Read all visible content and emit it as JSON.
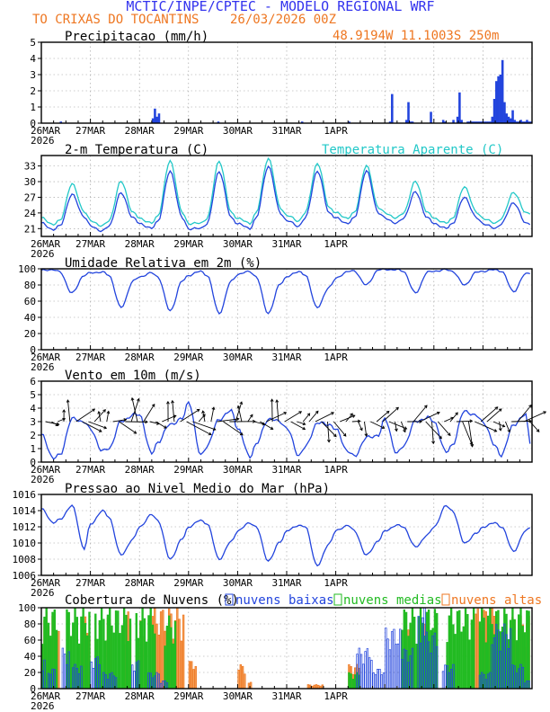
{
  "header": {
    "title": "MCTIC/INPE/CPTEC - MODELO REGIONAL WRF",
    "location": "TO CRIXAS DO TOCANTINS",
    "run": "26/03/2026 00Z",
    "coords": "48.9194W 11.1003S 250m"
  },
  "x_axis": {
    "ticks": [
      "26MAR",
      "27MAR",
      "28MAR",
      "29MAR",
      "30MAR",
      "31MAR",
      "1APR"
    ],
    "year": "2026"
  },
  "colors": {
    "title": "#3333ee",
    "orange": "#ee7722",
    "blue": "#2244dd",
    "cyan": "#22c8c8",
    "green": "#22bb22",
    "orange_fill": "#f5a25a",
    "axis": "#000000"
  },
  "chart_data": [
    {
      "id": "precip",
      "type": "bar",
      "title": "Precipitacao (mm/h)",
      "ylim": [
        0,
        5
      ],
      "yticks": [
        "0",
        "1",
        "2",
        "3",
        "4",
        "5"
      ],
      "hours": [
        9,
        54,
        55,
        56,
        57,
        86,
        127,
        150,
        170,
        171,
        178,
        179,
        180,
        181,
        190,
        196,
        197,
        201,
        203,
        204,
        205,
        208,
        209,
        210,
        211,
        212,
        213,
        214,
        215,
        216,
        217,
        218,
        219,
        220,
        221,
        222,
        223,
        224,
        225,
        226,
        227,
        228,
        229,
        230,
        231,
        232,
        233,
        234,
        235,
        236,
        237,
        238,
        239
      ],
      "values": [
        0.1,
        0.3,
        0.9,
        0.4,
        0.6,
        0.1,
        0.1,
        0.1,
        0.1,
        1.8,
        0.2,
        1.3,
        0.1,
        0.1,
        0.7,
        0.2,
        0.1,
        0.2,
        0.4,
        1.9,
        0.2,
        0.1,
        0.1,
        0.1,
        0.1,
        0.1,
        0.1,
        0.1,
        0.1,
        0.1,
        0.1,
        0.1,
        0.1,
        0.4,
        1.5,
        2.6,
        2.9,
        3.0,
        3.9,
        1.3,
        0.6,
        0.4,
        0.3,
        0.8,
        0.2,
        0.1,
        0.1,
        0.2,
        0.1,
        0.1,
        0.2,
        0.1,
        0.1
      ]
    },
    {
      "id": "temp",
      "type": "line",
      "title": "2-m Temperatura (C)",
      "legend": "Temperatura Aparente (C)",
      "ylim": [
        19.5,
        35
      ],
      "yticks": [
        "21",
        "24",
        "27",
        "30",
        "33"
      ],
      "series": [
        {
          "name": "2-m Temperatura (C)",
          "keys_h": [
            0,
            6,
            9,
            15,
            21,
            24,
            30,
            33,
            39,
            45,
            48,
            54,
            57,
            63,
            69,
            72,
            78,
            81,
            87,
            93,
            96,
            102,
            105,
            111,
            117,
            120,
            126,
            129,
            135,
            141,
            144,
            150,
            153,
            159,
            165,
            168,
            174,
            177,
            183,
            189,
            192,
            198,
            201,
            207,
            213,
            216,
            222,
            225,
            231,
            237,
            239
          ],
          "keys_v": [
            22.0,
            20.8,
            21.5,
            27.5,
            23.3,
            21.5,
            20.5,
            21.5,
            27.8,
            23.0,
            22.0,
            21.0,
            22.5,
            32.0,
            23.0,
            21.0,
            21.0,
            22.0,
            32.0,
            23.0,
            22.0,
            21.0,
            23.0,
            33.0,
            24.0,
            22.5,
            21.5,
            23.0,
            32.0,
            24.0,
            23.0,
            22.0,
            23.0,
            32.0,
            24.0,
            23.0,
            22.0,
            23.0,
            28.0,
            23.0,
            22.0,
            21.0,
            22.0,
            27.0,
            23.0,
            22.0,
            21.0,
            22.0,
            26.0,
            22.0,
            22.0
          ]
        },
        {
          "name": "Temperatura Aparente (C)",
          "keys_h": [
            0,
            6,
            9,
            15,
            21,
            24,
            30,
            33,
            39,
            45,
            48,
            54,
            57,
            63,
            69,
            72,
            78,
            81,
            87,
            93,
            96,
            102,
            105,
            111,
            117,
            120,
            126,
            129,
            135,
            141,
            144,
            150,
            153,
            159,
            165,
            168,
            174,
            177,
            183,
            189,
            192,
            198,
            201,
            207,
            213,
            216,
            222,
            225,
            231,
            237,
            239
          ],
          "keys_v": [
            23.0,
            21.8,
            22.5,
            29.5,
            24.3,
            22.5,
            21.5,
            22.5,
            30.0,
            24.0,
            23.0,
            22.0,
            23.5,
            34.0,
            24.0,
            22.0,
            22.0,
            23.0,
            34.0,
            24.0,
            23.0,
            22.0,
            24.0,
            34.5,
            25.0,
            23.5,
            22.5,
            24.0,
            33.5,
            25.0,
            24.0,
            23.0,
            24.0,
            33.0,
            25.0,
            24.0,
            23.0,
            24.0,
            30.0,
            24.0,
            23.0,
            22.0,
            23.0,
            29.0,
            24.0,
            23.0,
            22.0,
            23.0,
            28.0,
            24.0,
            24.0
          ]
        }
      ]
    },
    {
      "id": "rh",
      "type": "line",
      "title": "Umidade Relativa em 2m (%)",
      "ylim": [
        0,
        100
      ],
      "yticks": [
        "0",
        "20",
        "40",
        "60",
        "80",
        "100"
      ],
      "series": [
        {
          "name": "Umidade Relativa em 2m (%)",
          "keys_h": [
            0,
            6,
            9,
            15,
            21,
            24,
            30,
            33,
            39,
            45,
            48,
            54,
            57,
            63,
            69,
            72,
            78,
            81,
            87,
            93,
            96,
            102,
            105,
            111,
            117,
            120,
            126,
            129,
            135,
            141,
            144,
            150,
            153,
            159,
            165,
            168,
            174,
            177,
            183,
            189,
            192,
            198,
            201,
            207,
            213,
            216,
            222,
            225,
            231,
            237,
            239
          ],
          "keys_v": [
            98,
            99,
            96,
            70,
            92,
            95,
            96,
            92,
            52,
            85,
            90,
            95,
            90,
            48,
            85,
            92,
            97,
            92,
            45,
            85,
            93,
            97,
            90,
            45,
            82,
            90,
            97,
            92,
            52,
            78,
            88,
            97,
            97,
            80,
            99,
            99,
            99,
            97,
            70,
            96,
            97,
            99,
            97,
            80,
            96,
            97,
            99,
            97,
            72,
            94,
            95
          ]
        }
      ]
    },
    {
      "id": "wind",
      "type": "line",
      "title": "Vento em 10m (m/s)",
      "ylim": [
        0,
        6
      ],
      "yticks": [
        "0",
        "1",
        "2",
        "3",
        "4",
        "5",
        "6"
      ],
      "series": [
        {
          "name": "Vento em 10m (m/s)",
          "keys_h": [
            0,
            6,
            9,
            15,
            21,
            24,
            30,
            33,
            39,
            45,
            48,
            54,
            57,
            63,
            69,
            72,
            78,
            81,
            87,
            93,
            96,
            102,
            105,
            111,
            117,
            120,
            126,
            129,
            135,
            141,
            144,
            150,
            153,
            159,
            165,
            168,
            174,
            177,
            183,
            189,
            192,
            198,
            201,
            207,
            213,
            216,
            222,
            225,
            231,
            237,
            239
          ],
          "keys_v": [
            2.0,
            0.3,
            0.5,
            3.2,
            3.0,
            2.4,
            0.8,
            1.0,
            3.0,
            3.5,
            3.5,
            0.6,
            1.5,
            2.8,
            3.2,
            4.5,
            0.5,
            1.2,
            3.2,
            3.8,
            2.5,
            0.4,
            1.3,
            3.2,
            3.0,
            2.5,
            0.5,
            1.1,
            2.9,
            2.8,
            2.4,
            0.8,
            0.4,
            1.8,
            2.0,
            3.2,
            0.6,
            1.2,
            3.0,
            3.3,
            3.0,
            0.7,
            1.3,
            3.8,
            3.4,
            3.0,
            1.2,
            0.5,
            2.8,
            3.5,
            1.5
          ]
        }
      ]
    },
    {
      "id": "pres",
      "type": "line",
      "title": "Pressao ao Nivel Medio do Mar (hPa)",
      "ylim": [
        1006,
        1016
      ],
      "yticks": [
        "1006",
        "1008",
        "1010",
        "1012",
        "1014",
        "1016"
      ],
      "series": [
        {
          "name": "Pressao ao Nivel Medio do Mar (hPa)",
          "keys_h": [
            0,
            6,
            9,
            15,
            21,
            24,
            30,
            33,
            39,
            45,
            48,
            54,
            57,
            63,
            69,
            72,
            78,
            81,
            87,
            93,
            96,
            102,
            105,
            111,
            117,
            120,
            126,
            129,
            135,
            141,
            144,
            150,
            153,
            159,
            165,
            168,
            174,
            177,
            183,
            189,
            192,
            198,
            201,
            207,
            213,
            216,
            222,
            225,
            231,
            237,
            239
          ],
          "keys_v": [
            1014.2,
            1012.5,
            1012.9,
            1014.6,
            1009.3,
            1012.3,
            1014.0,
            1013.2,
            1008.5,
            1010.5,
            1012.0,
            1013.5,
            1012.8,
            1008.0,
            1010.5,
            1012.0,
            1012.8,
            1012.4,
            1008.0,
            1010.2,
            1011.5,
            1012.5,
            1012.0,
            1007.8,
            1010.2,
            1011.5,
            1012.2,
            1012.0,
            1007.2,
            1010.0,
            1011.5,
            1012.2,
            1011.5,
            1008.5,
            1010.3,
            1011.5,
            1012.2,
            1012.0,
            1009.5,
            1011.0,
            1012.0,
            1014.6,
            1014.0,
            1010.0,
            1011.2,
            1012.0,
            1012.5,
            1012.0,
            1009.0,
            1011.5,
            1012.0
          ]
        }
      ]
    },
    {
      "id": "clouds",
      "type": "bar",
      "title": "Cobertura de Nuvens (%)",
      "legend": [
        "nuvens baixas",
        "nuvens medias",
        "nuvens altas"
      ],
      "ylim": [
        0,
        100
      ],
      "yticks": [
        "0",
        "20",
        "40",
        "60",
        "80",
        "100"
      ],
      "series": [
        {
          "name": "nuvens altas",
          "ranges": [
            [
              0,
              9,
              95
            ],
            [
              19,
              24,
              90
            ],
            [
              32,
              35,
              90
            ],
            [
              40,
              44,
              95
            ],
            [
              48,
              50,
              85
            ],
            [
              54,
              70,
              100
            ],
            [
              72,
              76,
              35
            ],
            [
              96,
              100,
              30
            ],
            [
              101,
              103,
              10
            ],
            [
              130,
              138,
              5
            ],
            [
              150,
              156,
              30
            ],
            [
              178,
              182,
              80
            ],
            [
              184,
              190,
              80
            ],
            [
              212,
              222,
              100
            ],
            [
              230,
              239,
              90
            ]
          ]
        },
        {
          "name": "nuvens medias",
          "ranges": [
            [
              0,
              8,
              100
            ],
            [
              12,
              24,
              100
            ],
            [
              26,
              44,
              100
            ],
            [
              46,
              56,
              100
            ],
            [
              60,
              66,
              90
            ],
            [
              150,
              156,
              20
            ],
            [
              176,
              194,
              100
            ],
            [
              198,
              212,
              100
            ],
            [
              214,
              239,
              100
            ]
          ]
        },
        {
          "name": "nuvens baixas",
          "ranges": [
            [
              0,
              2,
              40
            ],
            [
              3,
              7,
              25
            ],
            [
              10,
              14,
              50
            ],
            [
              15,
              20,
              30
            ],
            [
              24,
              29,
              40
            ],
            [
              30,
              37,
              20
            ],
            [
              44,
              48,
              35
            ],
            [
              52,
              58,
              20
            ],
            [
              58,
              62,
              10
            ],
            [
              154,
              162,
              50
            ],
            [
              162,
              168,
              25
            ],
            [
              168,
              176,
              75
            ],
            [
              176,
              182,
              50
            ],
            [
              184,
              188,
              100
            ],
            [
              188,
              194,
              70
            ],
            [
              196,
              202,
              30
            ],
            [
              214,
              220,
              20
            ],
            [
              220,
              230,
              80
            ],
            [
              230,
              236,
              30
            ],
            [
              236,
              239,
              10
            ]
          ]
        }
      ]
    }
  ]
}
